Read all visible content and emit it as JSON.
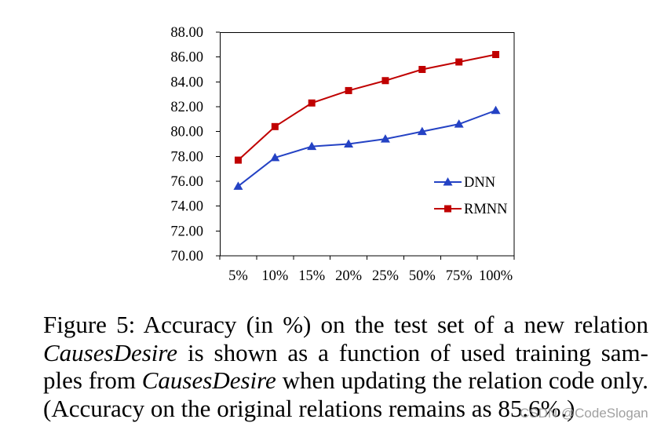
{
  "figure": {
    "caption": {
      "line1": "Figure 5: Accuracy (in %) on the test set of a new relation",
      "line2_italic": "CausesDesire",
      "line2_rest": "is shown as a function of used training sam-",
      "line3_start": "ples from",
      "line3_italic": "CausesDesire",
      "line3_rest": "when updating the relation code only.",
      "line4": "(Accuracy on the original relations remains as 85.6%.)"
    }
  },
  "chart_data": {
    "type": "line",
    "title": "",
    "xlabel": "",
    "ylabel": "",
    "categories": [
      "5%",
      "10%",
      "15%",
      "20%",
      "25%",
      "50%",
      "75%",
      "100%"
    ],
    "ylim": [
      70,
      88
    ],
    "ytick_labels": [
      "70.00",
      "72.00",
      "74.00",
      "76.00",
      "78.00",
      "80.00",
      "82.00",
      "84.00",
      "86.00",
      "88.00"
    ],
    "grid": false,
    "legend": "center-right",
    "series": [
      {
        "name": "DNN",
        "color": "#2442c4",
        "marker": "triangle",
        "values": [
          75.6,
          77.9,
          78.8,
          79.0,
          79.4,
          80.0,
          80.6,
          81.7
        ]
      },
      {
        "name": "RMNN",
        "color": "#c00000",
        "marker": "square",
        "values": [
          77.7,
          80.4,
          82.3,
          83.3,
          84.1,
          85.0,
          85.6,
          86.2
        ]
      }
    ]
  },
  "watermark": "CSDN @CodeSlogan"
}
